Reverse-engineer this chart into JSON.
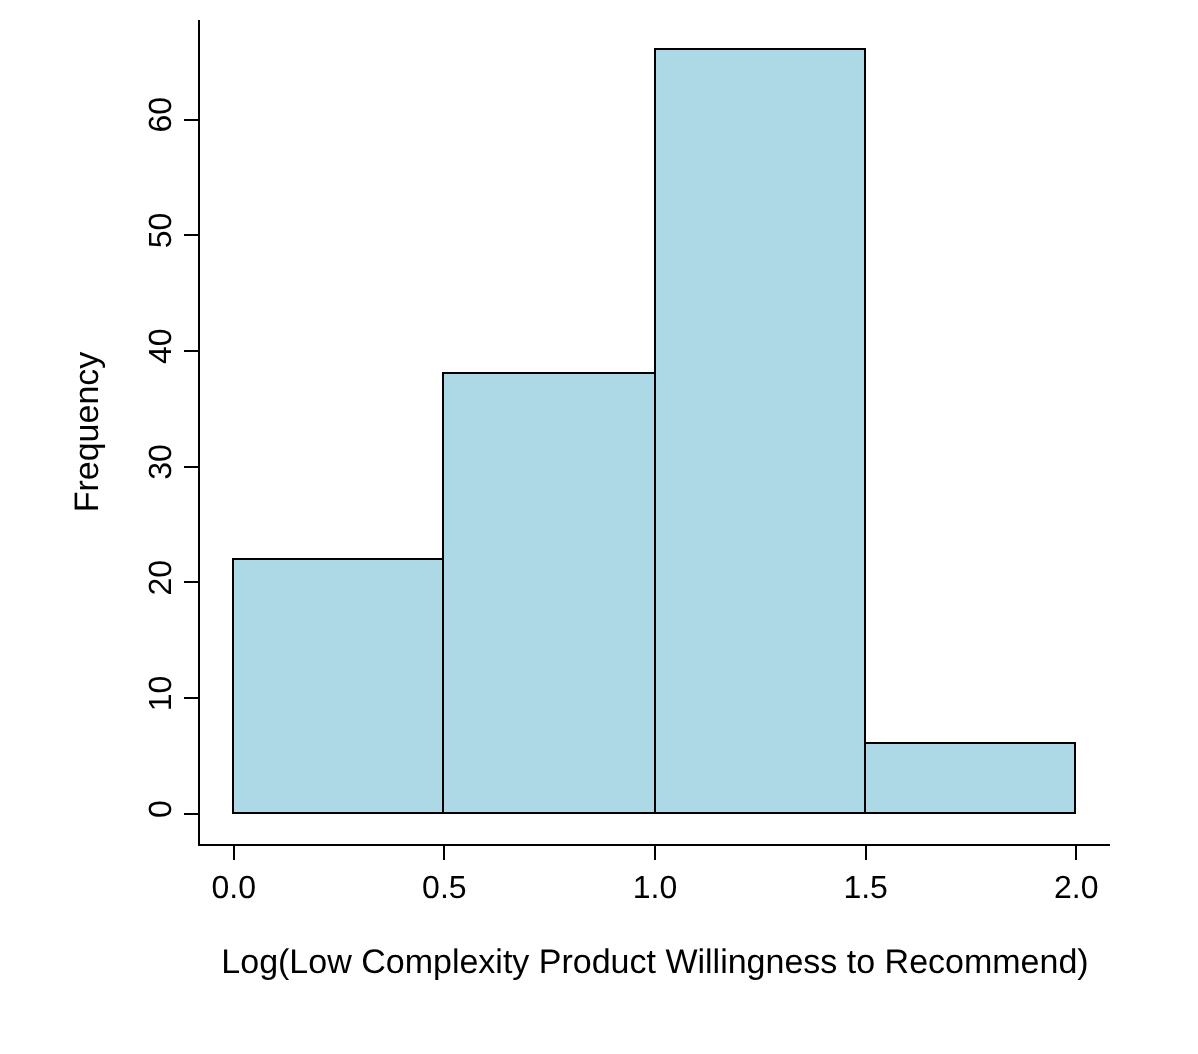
{
  "chart_data": {
    "type": "histogram",
    "xlabel": "Log(Low Complexity Product Willingness to Recommend)",
    "ylabel": "Frequency",
    "bins": [
      0,
      0.5,
      1.0,
      1.5,
      2.0
    ],
    "values": [
      22,
      38,
      66,
      6
    ],
    "color": "#add8e6",
    "xlim": [
      -0.08,
      2.08
    ],
    "xticks": [
      {
        "value": 0,
        "label": "0.0"
      },
      0.5,
      {
        "value": 1,
        "label": "1.0"
      },
      1.5,
      {
        "value": 2,
        "label": "2.0"
      }
    ],
    "ylim": [
      -2.6,
      68.6
    ],
    "yticks": [
      0,
      10,
      20,
      30,
      40,
      50,
      60
    ]
  }
}
